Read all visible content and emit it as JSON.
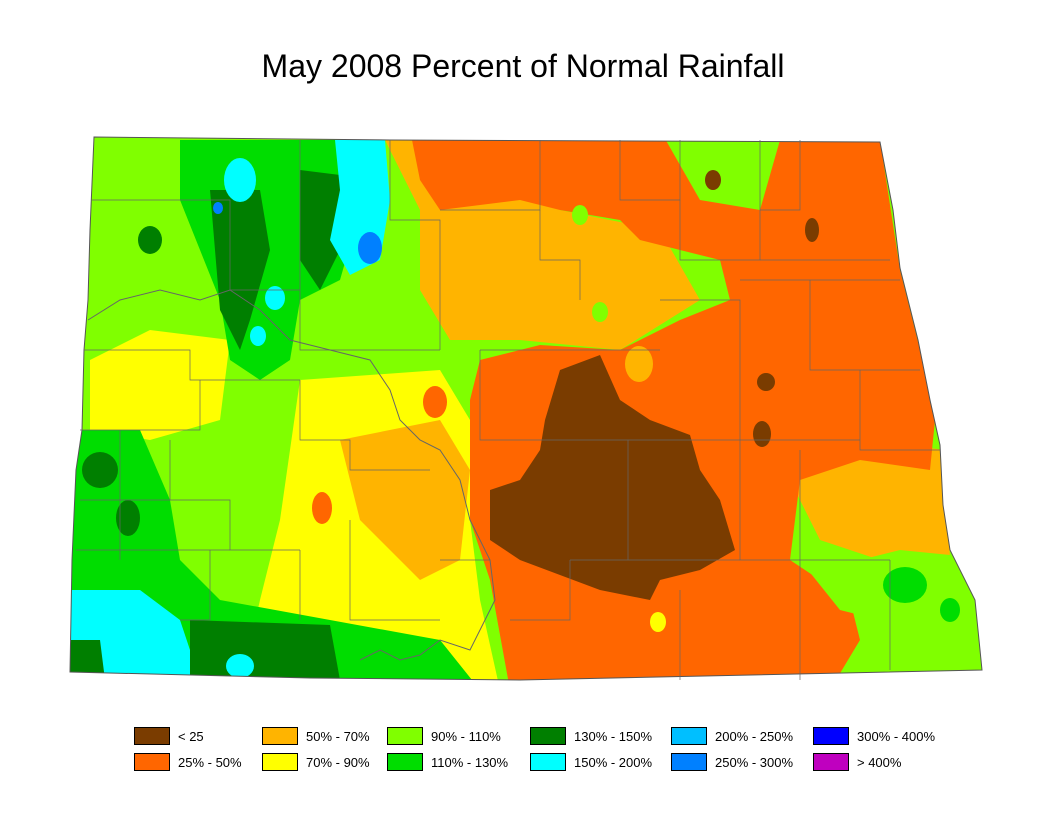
{
  "title": "May 2008 Percent of Normal Rainfall",
  "legend": [
    {
      "label": "< 25",
      "color": "#7a3c00"
    },
    {
      "label": "25% - 50%",
      "color": "#ff6600"
    },
    {
      "label": "50% - 70%",
      "color": "#ffb400"
    },
    {
      "label": "70% - 90%",
      "color": "#ffff00"
    },
    {
      "label": "90% - 110%",
      "color": "#80ff00"
    },
    {
      "label": "110% - 130%",
      "color": "#00dd00"
    },
    {
      "label": "130% - 150%",
      "color": "#007f00"
    },
    {
      "label": "150% - 200%",
      "color": "#00ffff"
    },
    {
      "label": "200% - 250%",
      "color": "#00bfff"
    },
    {
      "label": "250% - 300%",
      "color": "#0080ff"
    },
    {
      "label": "300% - 400%",
      "color": "#0000ff"
    },
    {
      "label": "> 400%",
      "color": "#bf00bf"
    }
  ]
}
